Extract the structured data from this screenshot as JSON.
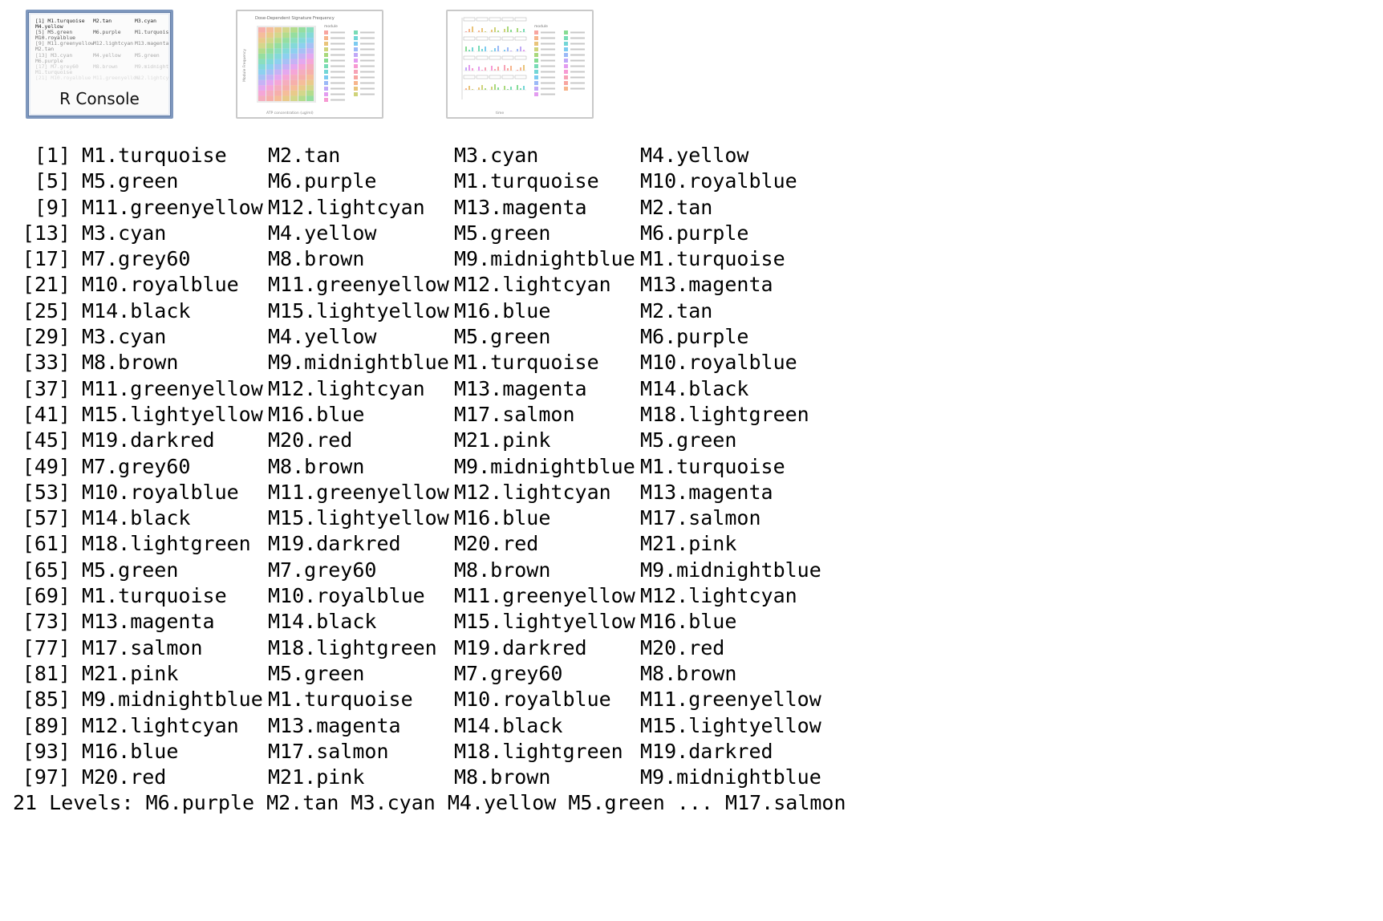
{
  "thumbnails": [
    {
      "label": "R Console",
      "preview_lines": [
        [
          "[1] M1.turquoise",
          "M2.tan",
          "M3.cyan"
        ],
        [
          "M4.yellow",
          "",
          ""
        ],
        [
          "[5] M5.green",
          "M6.purple",
          "M1.turquoise"
        ],
        [
          "M10.royalblue",
          "",
          ""
        ],
        [
          "[9] M11.greenyellow",
          "M12.lightcyan",
          "M13.magenta"
        ],
        [
          "M2.tan",
          "",
          ""
        ],
        [
          "[13] M3.cyan",
          "M4.yellow",
          "M5.green"
        ],
        [
          "M6.purple",
          "",
          ""
        ],
        [
          "[17] M7.grey60",
          "M8.brown",
          "M9.midnightblue"
        ],
        [
          "M1.turquoise",
          "",
          ""
        ],
        [
          "[21] M10.royalblue",
          "M11.greenyellow",
          "M12.lightcyan"
        ]
      ]
    },
    {
      "label": "Dose-Dependent Signature Frequency",
      "ylabel": "Module Frequency",
      "xlabel": "ATP concentration (ug/ml)",
      "legend_title": "module"
    },
    {
      "label": "",
      "legend_title": "module",
      "xlabel": "time"
    }
  ],
  "console": {
    "rows": [
      {
        "index": "[1]",
        "cells": [
          "M1.turquoise",
          "M2.tan",
          "M3.cyan",
          "M4.yellow"
        ]
      },
      {
        "index": "[5]",
        "cells": [
          "M5.green",
          "M6.purple",
          "M1.turquoise",
          "M10.royalblue"
        ]
      },
      {
        "index": "[9]",
        "cells": [
          "M11.greenyellow",
          "M12.lightcyan",
          "M13.magenta",
          "M2.tan"
        ]
      },
      {
        "index": "[13]",
        "cells": [
          "M3.cyan",
          "M4.yellow",
          "M5.green",
          "M6.purple"
        ]
      },
      {
        "index": "[17]",
        "cells": [
          "M7.grey60",
          "M8.brown",
          "M9.midnightblue",
          "M1.turquoise"
        ]
      },
      {
        "index": "[21]",
        "cells": [
          "M10.royalblue",
          "M11.greenyellow",
          "M12.lightcyan",
          "M13.magenta"
        ]
      },
      {
        "index": "[25]",
        "cells": [
          "M14.black",
          "M15.lightyellow",
          "M16.blue",
          "M2.tan"
        ]
      },
      {
        "index": "[29]",
        "cells": [
          "M3.cyan",
          "M4.yellow",
          "M5.green",
          "M6.purple"
        ]
      },
      {
        "index": "[33]",
        "cells": [
          "M8.brown",
          "M9.midnightblue",
          "M1.turquoise",
          "M10.royalblue"
        ]
      },
      {
        "index": "[37]",
        "cells": [
          "M11.greenyellow",
          "M12.lightcyan",
          "M13.magenta",
          "M14.black"
        ]
      },
      {
        "index": "[41]",
        "cells": [
          "M15.lightyellow",
          "M16.blue",
          "M17.salmon",
          "M18.lightgreen"
        ]
      },
      {
        "index": "[45]",
        "cells": [
          "M19.darkred",
          "M20.red",
          "M21.pink",
          "M5.green"
        ]
      },
      {
        "index": "[49]",
        "cells": [
          "M7.grey60",
          "M8.brown",
          "M9.midnightblue",
          "M1.turquoise"
        ]
      },
      {
        "index": "[53]",
        "cells": [
          "M10.royalblue",
          "M11.greenyellow",
          "M12.lightcyan",
          "M13.magenta"
        ]
      },
      {
        "index": "[57]",
        "cells": [
          "M14.black",
          "M15.lightyellow",
          "M16.blue",
          "M17.salmon"
        ]
      },
      {
        "index": "[61]",
        "cells": [
          "M18.lightgreen",
          "M19.darkred",
          "M20.red",
          "M21.pink"
        ]
      },
      {
        "index": "[65]",
        "cells": [
          "M5.green",
          "M7.grey60",
          "M8.brown",
          "M9.midnightblue"
        ]
      },
      {
        "index": "[69]",
        "cells": [
          "M1.turquoise",
          "M10.royalblue",
          "M11.greenyellow",
          "M12.lightcyan"
        ]
      },
      {
        "index": "[73]",
        "cells": [
          "M13.magenta",
          "M14.black",
          "M15.lightyellow",
          "M16.blue"
        ]
      },
      {
        "index": "[77]",
        "cells": [
          "M17.salmon",
          "M18.lightgreen",
          "M19.darkred",
          "M20.red"
        ]
      },
      {
        "index": "[81]",
        "cells": [
          "M21.pink",
          "M5.green",
          "M7.grey60",
          "M8.brown"
        ]
      },
      {
        "index": "[85]",
        "cells": [
          "M9.midnightblue",
          "M1.turquoise",
          "M10.royalblue",
          "M11.greenyellow"
        ]
      },
      {
        "index": "[89]",
        "cells": [
          "M12.lightcyan",
          "M13.magenta",
          "M14.black",
          "M15.lightyellow"
        ]
      },
      {
        "index": "[93]",
        "cells": [
          "M16.blue",
          "M17.salmon",
          "M18.lightgreen",
          "M19.darkred"
        ]
      },
      {
        "index": "[97]",
        "cells": [
          "M20.red",
          "M21.pink",
          "M8.brown",
          "M9.midnightblue"
        ]
      }
    ],
    "levels_line": "21 Levels: M6.purple M2.tan M3.cyan M4.yellow M5.green ... M17.salmon"
  },
  "colors": {
    "selected_border": "#7e97bd",
    "thumb_border": "#c9c9c9",
    "text": "#000000"
  }
}
